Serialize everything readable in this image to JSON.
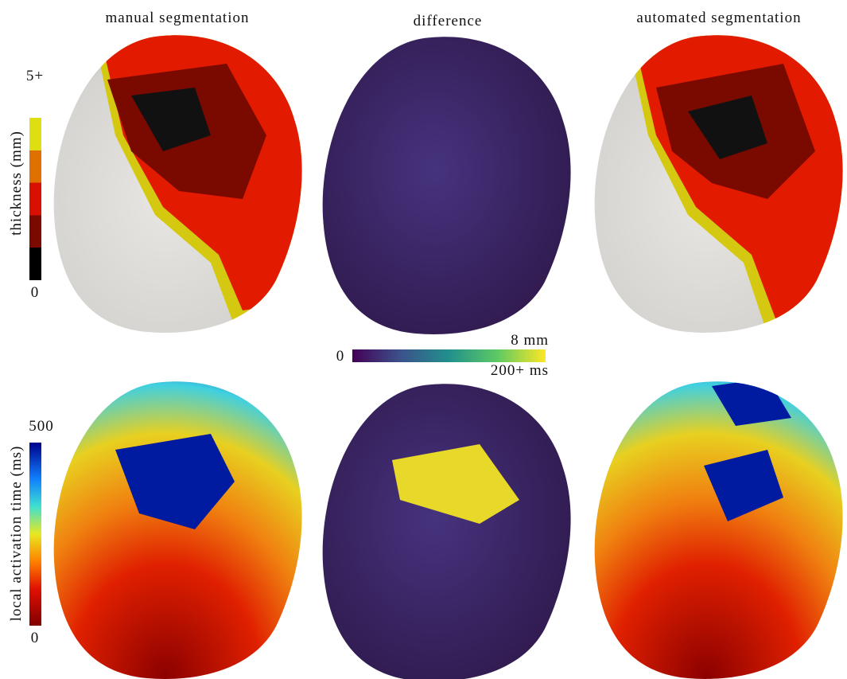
{
  "panels": {
    "titles": [
      "manual segmentation",
      "difference",
      "automated segmentation"
    ]
  },
  "thickness_colorbar": {
    "label": "thickness (mm)",
    "max_label": "5+",
    "min_label": "0"
  },
  "difference_colorbar": {
    "min_label": "0",
    "max_label_top": "8 mm",
    "max_label_bottom": "200+ ms"
  },
  "activation_colorbar": {
    "label": "local activation time (ms)",
    "max_label": "500",
    "min_label": "0"
  }
}
